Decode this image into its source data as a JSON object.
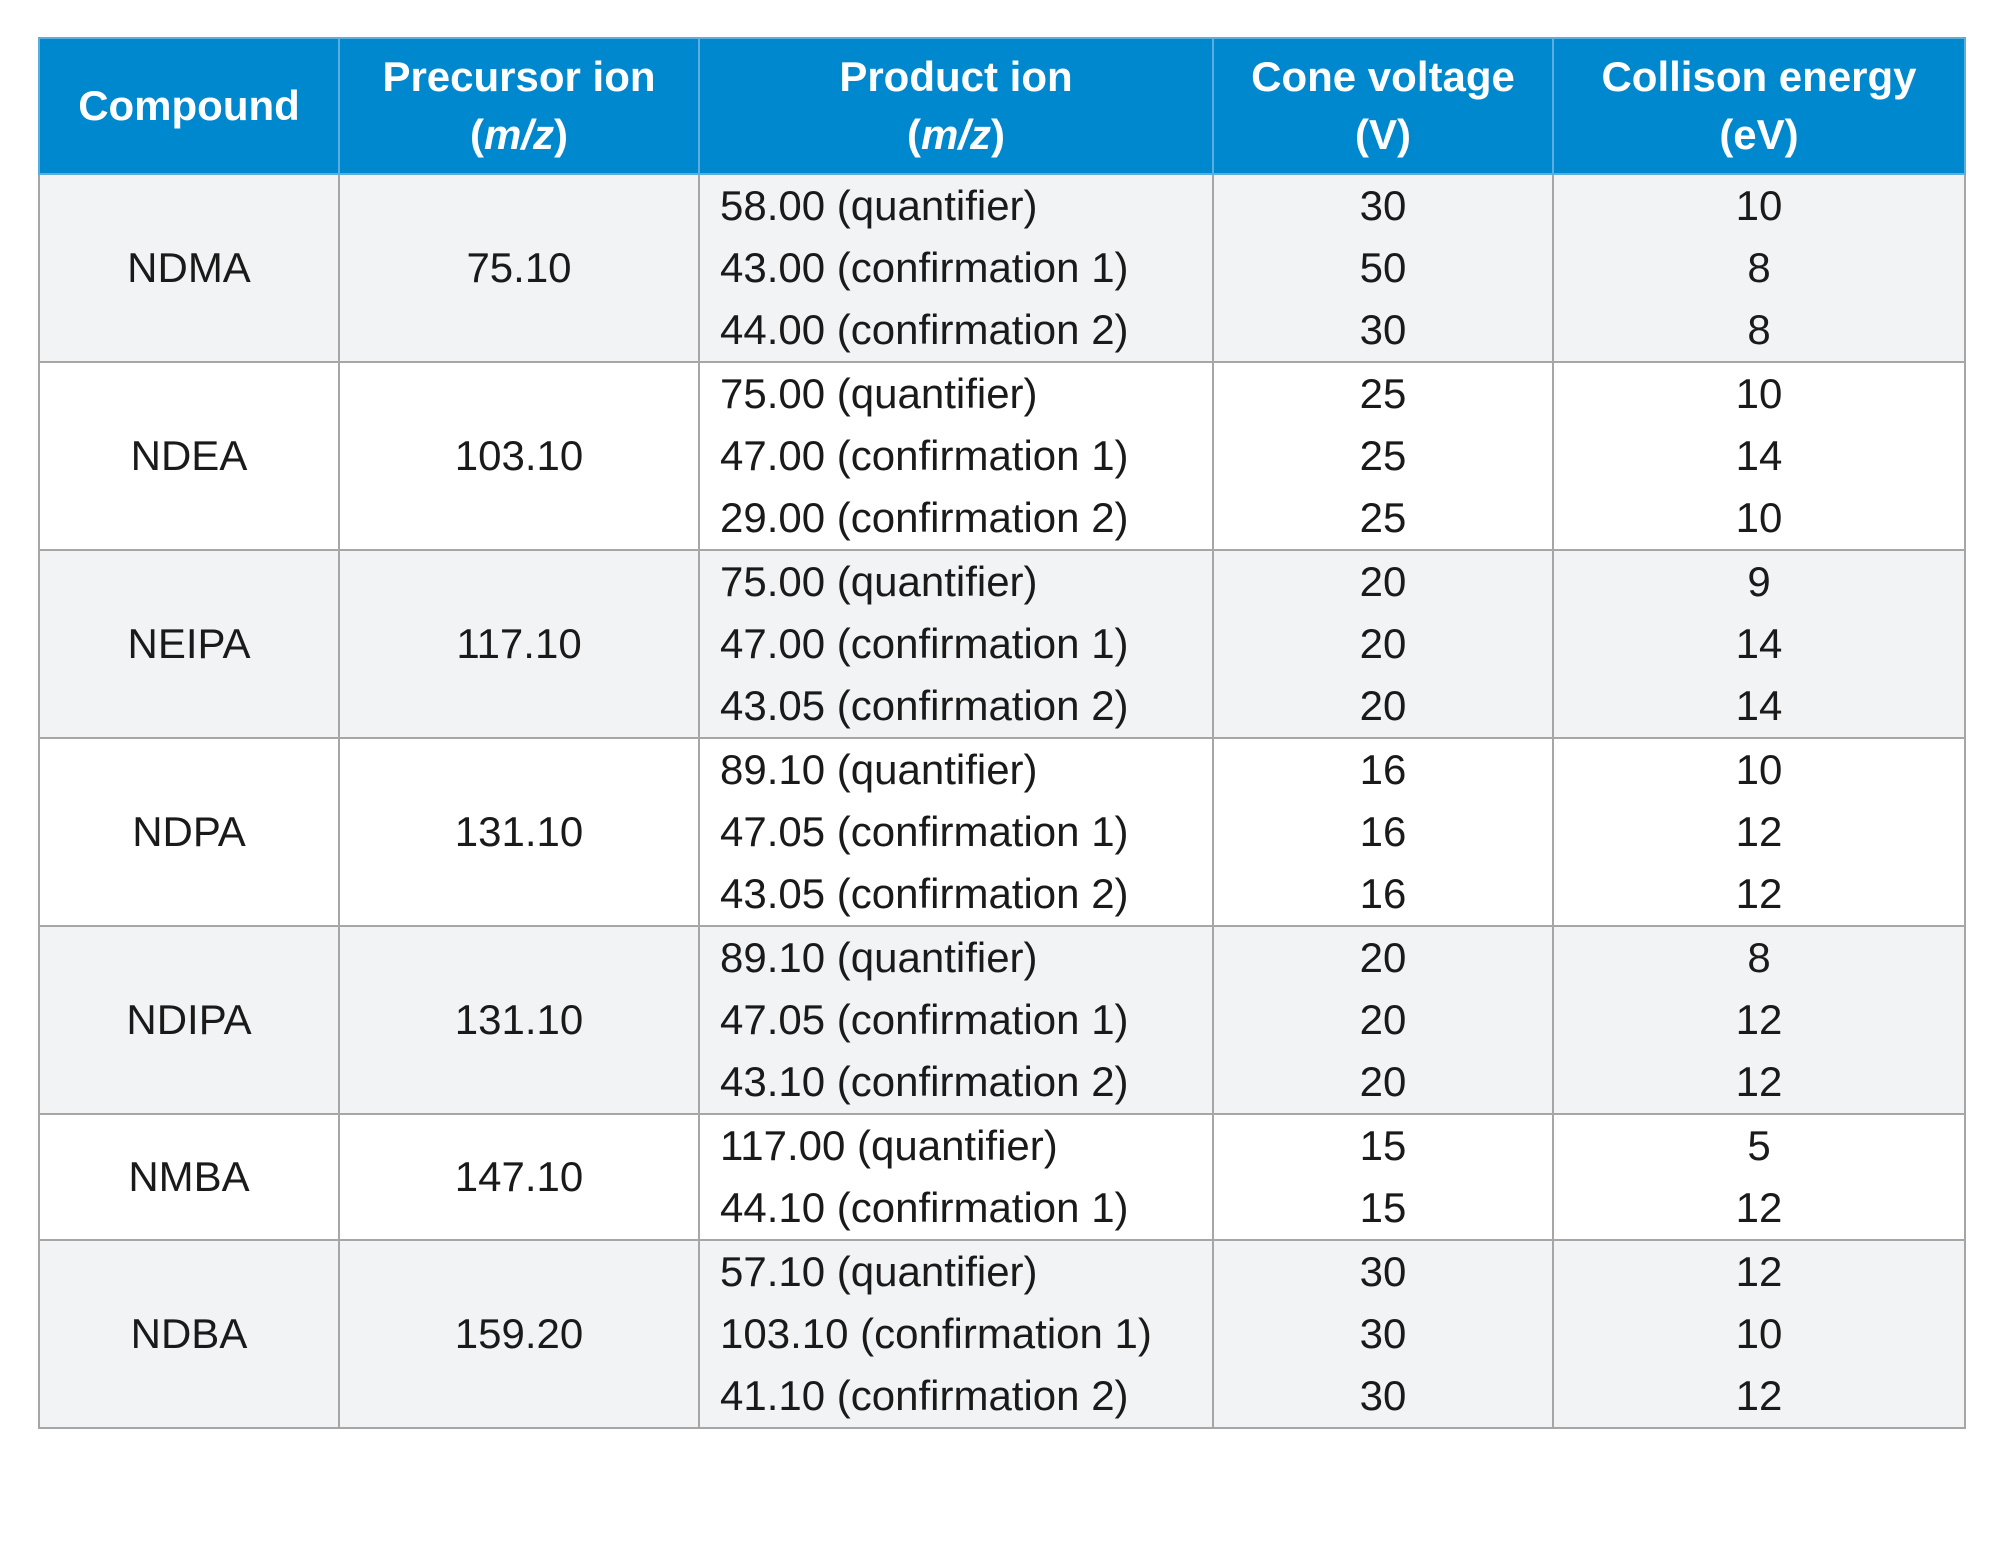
{
  "headers": {
    "compound": "Compound",
    "precursor": "Precursor ion",
    "precursor_unit": "m/z",
    "product": "Product ion",
    "product_unit": "m/z",
    "cone": "Cone voltage",
    "cone_unit": "(V)",
    "collision": "Collison energy",
    "collision_unit": "(eV)"
  },
  "rows": [
    {
      "compound": "NDMA",
      "precursor": "75.10",
      "products": [
        "58.00 (quantifier)",
        "43.00 (confirmation 1)",
        "44.00 (confirmation 2)"
      ],
      "cone": [
        "30",
        "50",
        "30"
      ],
      "collision": [
        "10",
        "8",
        "8"
      ]
    },
    {
      "compound": "NDEA",
      "precursor": "103.10",
      "products": [
        "75.00 (quantifier)",
        "47.00 (confirmation 1)",
        "29.00 (confirmation 2)"
      ],
      "cone": [
        "25",
        "25",
        "25"
      ],
      "collision": [
        "10",
        "14",
        "10"
      ]
    },
    {
      "compound": "NEIPA",
      "precursor": "117.10",
      "products": [
        "75.00 (quantifier)",
        "47.00 (confirmation 1)",
        "43.05 (confirmation 2)"
      ],
      "cone": [
        "20",
        "20",
        "20"
      ],
      "collision": [
        "9",
        "14",
        "14"
      ]
    },
    {
      "compound": "NDPA",
      "precursor": "131.10",
      "products": [
        "89.10 (quantifier)",
        "47.05 (confirmation 1)",
        "43.05 (confirmation 2)"
      ],
      "cone": [
        "16",
        "16",
        "16"
      ],
      "collision": [
        "10",
        "12",
        "12"
      ]
    },
    {
      "compound": "NDIPA",
      "precursor": "131.10",
      "products": [
        "89.10 (quantifier)",
        "47.05 (confirmation 1)",
        "43.10 (confirmation 2)"
      ],
      "cone": [
        "20",
        "20",
        "20"
      ],
      "collision": [
        "8",
        "12",
        "12"
      ]
    },
    {
      "compound": "NMBA",
      "precursor": "147.10",
      "products": [
        "117.00 (quantifier)",
        "44.10 (confirmation 1)"
      ],
      "cone": [
        "15",
        "15"
      ],
      "collision": [
        "5",
        "12"
      ]
    },
    {
      "compound": "NDBA",
      "precursor": "159.20",
      "products": [
        "57.10 (quantifier)",
        "103.10 (confirmation 1)",
        "41.10 (confirmation 2)"
      ],
      "cone": [
        "30",
        "30",
        "30"
      ],
      "collision": [
        "12",
        "10",
        "12"
      ]
    }
  ]
}
